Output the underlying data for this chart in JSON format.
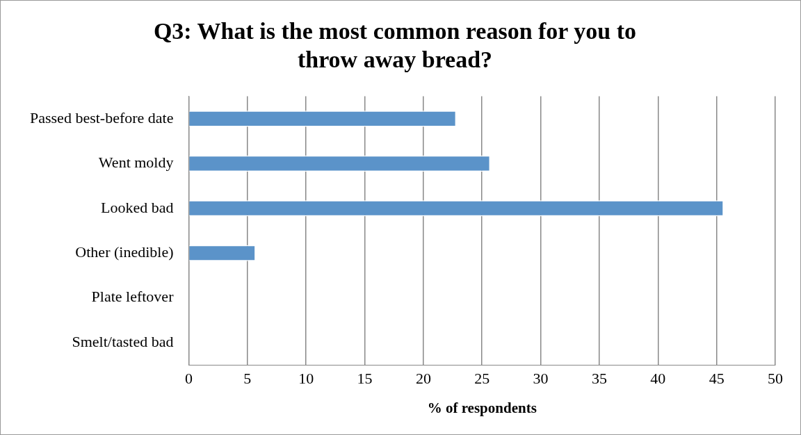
{
  "chart_data": {
    "type": "bar",
    "orientation": "horizontal",
    "title": "Q3: What is the most common reason for you to throw away bread?",
    "xlabel": "% of respondents",
    "categories": [
      "Passed best-before date",
      "Went moldy",
      "Looked bad",
      "Other (inedible)",
      "Plate leftover",
      "Smelt/tasted bad"
    ],
    "values": [
      22.8,
      25.7,
      45.6,
      5.7,
      0,
      0
    ],
    "color": "#5b93c9",
    "xlim": [
      0,
      50
    ],
    "xticks": [
      0,
      5,
      10,
      15,
      20,
      25,
      30,
      35,
      40,
      45,
      50
    ],
    "grid": "x",
    "legend": false
  }
}
